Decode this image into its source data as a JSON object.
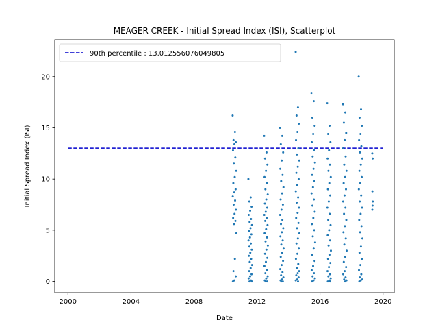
{
  "chart_data": {
    "type": "scatter",
    "title": "MEAGER CREEK - Initial Spread Index (ISI), Scatterplot",
    "xlabel": "Date",
    "ylabel": "Initial Spread Index (ISI)",
    "xlim": [
      "1999-03-01",
      "2020-09-15"
    ],
    "ylim": [
      -1.1,
      23.6
    ],
    "x_ticks": [
      "2000",
      "2004",
      "2008",
      "2012",
      "2016",
      "2020"
    ],
    "y_ticks": [
      "0",
      "5",
      "10",
      "15",
      "20"
    ],
    "grid": false,
    "legend_position": "top-left",
    "reference_line": {
      "label": "90th percentile : 13.012556076049805",
      "value": 13.012556076049805,
      "x_start": "2000-01-01",
      "x_end": "2020-01-01",
      "color": "#0000cc",
      "style": "dashed"
    },
    "series": [
      {
        "color": "#1f77b4",
        "seasons": [
          {
            "start": "2010-06-15",
            "end": "2010-09-10",
            "values": [
              16.2,
              14.6,
              13.8,
              13.6,
              13.4,
              12.8,
              12.1,
              11.5,
              10.8,
              10.2,
              9.6,
              9.0,
              8.7,
              8.3,
              7.9,
              7.5,
              7.0,
              6.6,
              6.2,
              5.9,
              5.6,
              4.7,
              2.2,
              1.0,
              0.5,
              0.1,
              0.0
            ]
          },
          {
            "start": "2011-06-15",
            "end": "2011-09-10",
            "values": [
              10.0,
              8.2,
              7.8,
              7.3,
              6.9,
              6.5,
              6.1,
              5.8,
              5.5,
              5.2,
              4.9,
              4.6,
              4.3,
              4.0,
              3.7,
              3.4,
              3.1,
              2.8,
              2.5,
              2.2,
              1.9,
              1.6,
              1.3,
              1.0,
              0.7,
              0.5,
              0.3,
              0.1,
              0.0,
              0.0
            ]
          },
          {
            "start": "2012-06-15",
            "end": "2012-09-10",
            "values": [
              14.2,
              12.6,
              12.0,
              11.4,
              10.8,
              10.2,
              9.6,
              9.0,
              8.5,
              8.0,
              7.6,
              7.2,
              6.8,
              6.5,
              6.2,
              5.9,
              5.5,
              5.1,
              4.7,
              4.3,
              3.9,
              3.5,
              3.1,
              2.7,
              2.3,
              1.9,
              1.5,
              1.1,
              0.8,
              0.5,
              0.3,
              0.1,
              0.0,
              0.0
            ]
          },
          {
            "start": "2013-06-15",
            "end": "2013-09-10",
            "values": [
              15.0,
              14.2,
              13.4,
              12.6,
              11.8,
              11.0,
              10.4,
              9.8,
              9.2,
              8.6,
              8.0,
              7.5,
              7.0,
              6.5,
              6.0,
              5.6,
              5.2,
              4.8,
              4.4,
              4.0,
              3.6,
              3.2,
              2.8,
              2.4,
              2.0,
              1.6,
              1.2,
              0.9,
              0.6,
              0.4,
              0.2,
              0.1,
              0.0,
              0.0
            ]
          },
          {
            "start": "2014-06-15",
            "end": "2014-09-10",
            "values": [
              22.4,
              17.0,
              16.2,
              15.4,
              14.6,
              13.8,
              13.0,
              12.4,
              11.8,
              11.2,
              10.6,
              10.0,
              9.4,
              8.8,
              8.2,
              7.7,
              7.2,
              6.7,
              6.2,
              5.7,
              5.2,
              4.7,
              4.2,
              3.7,
              3.2,
              2.7,
              2.2,
              1.7,
              1.3,
              1.0,
              0.8,
              0.6,
              0.4,
              0.2,
              0.1,
              0.0
            ]
          },
          {
            "start": "2015-06-15",
            "end": "2015-09-10",
            "values": [
              18.4,
              17.6,
              16.0,
              15.2,
              14.4,
              13.6,
              12.8,
              12.2,
              11.6,
              11.0,
              10.4,
              9.8,
              9.2,
              8.6,
              8.0,
              7.4,
              6.8,
              6.2,
              5.6,
              5.0,
              4.4,
              3.8,
              3.2,
              2.6,
              2.0,
              1.5,
              1.1,
              0.8,
              0.5,
              0.3,
              0.1,
              0.0
            ]
          },
          {
            "start": "2016-06-15",
            "end": "2016-09-10",
            "values": [
              17.4,
              15.2,
              14.4,
              13.6,
              12.8,
              12.0,
              11.4,
              10.8,
              10.2,
              9.6,
              9.0,
              8.4,
              7.8,
              7.2,
              6.6,
              6.0,
              5.5,
              5.0,
              4.5,
              4.0,
              3.5,
              3.0,
              2.6,
              2.2,
              1.8,
              1.4,
              1.0,
              0.7,
              0.5,
              0.3,
              0.1,
              0.0,
              0.0
            ]
          },
          {
            "start": "2017-06-15",
            "end": "2017-09-10",
            "values": [
              17.3,
              16.5,
              15.5,
              14.5,
              13.8,
              13.0,
              12.2,
              11.4,
              10.8,
              10.2,
              9.6,
              9.0,
              8.4,
              7.8,
              7.2,
              6.6,
              6.0,
              5.4,
              4.8,
              4.2,
              3.6,
              3.0,
              2.4,
              1.9,
              1.4,
              1.0,
              0.7,
              0.4,
              0.2,
              0.1,
              0.0
            ]
          },
          {
            "start": "2018-06-15",
            "end": "2018-09-10",
            "values": [
              20.0,
              16.8,
              16.0,
              15.2,
              14.4,
              13.8,
              13.2,
              12.6,
              12.0,
              11.4,
              10.8,
              10.2,
              9.6,
              9.0,
              8.4,
              7.8,
              7.2,
              6.6,
              6.0,
              5.4,
              4.8,
              4.2,
              3.4,
              2.8,
              2.2,
              1.6,
              1.1,
              0.7,
              0.4,
              0.2,
              0.1,
              0.0
            ]
          },
          {
            "start": "2019-04-25",
            "end": "2019-05-10",
            "values": [
              12.5,
              12.0,
              8.8,
              7.8,
              7.4,
              7.0
            ]
          }
        ]
      }
    ]
  }
}
